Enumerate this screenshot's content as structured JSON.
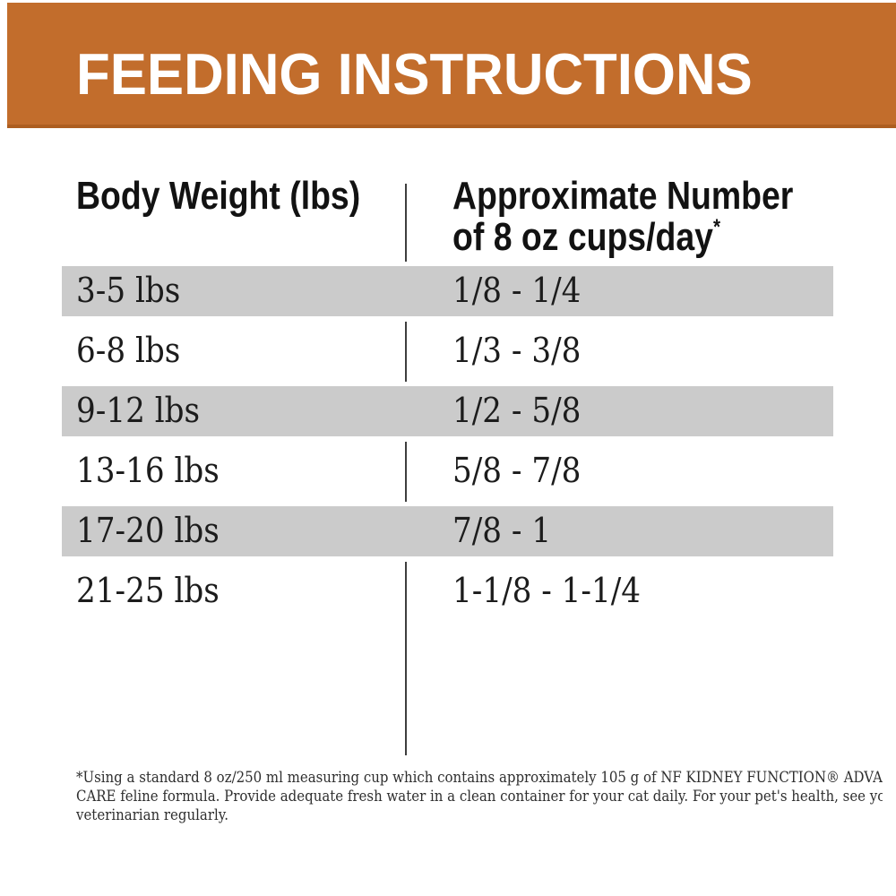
{
  "banner": {
    "title": "FEEDING INSTRUCTIONS"
  },
  "table": {
    "col1_header": "Body Weight (lbs)",
    "col2_header_line1": "Approximate Number",
    "col2_header_line2": "of 8 oz cups/day",
    "col2_header_marker": "*",
    "rows": [
      {
        "weight": "3-5 lbs",
        "cups": "1/8 - 1/4",
        "shaded": true
      },
      {
        "weight": "6-8 lbs",
        "cups": "1/3 - 3/8",
        "shaded": false
      },
      {
        "weight": "9-12 lbs",
        "cups": "1/2 - 5/8",
        "shaded": true
      },
      {
        "weight": "13-16 lbs",
        "cups": "5/8 - 7/8",
        "shaded": false
      },
      {
        "weight": "17-20 lbs",
        "cups": "7/8 - 1",
        "shaded": true
      },
      {
        "weight": "21-25 lbs",
        "cups": "1-1/8 - 1-1/4",
        "shaded": false
      }
    ]
  },
  "footnote": {
    "lines": [
      "*Using a standard 8 oz/250 ml measuring cup which contains approximately 105 g of NF KIDNEY FUNCTION® ADVANCED",
      "CARE feline formula. Provide adequate fresh water in a clean container for your cat daily. For your pet's health, see your",
      "veterinarian regularly."
    ]
  },
  "colors": {
    "banner-bg": "#C26D2C",
    "banner-edge": "#AD5E20",
    "banner-text": "#FFFFFF",
    "shaded-row": "#CBCBCB",
    "divider-color": "#3E3E3E"
  }
}
